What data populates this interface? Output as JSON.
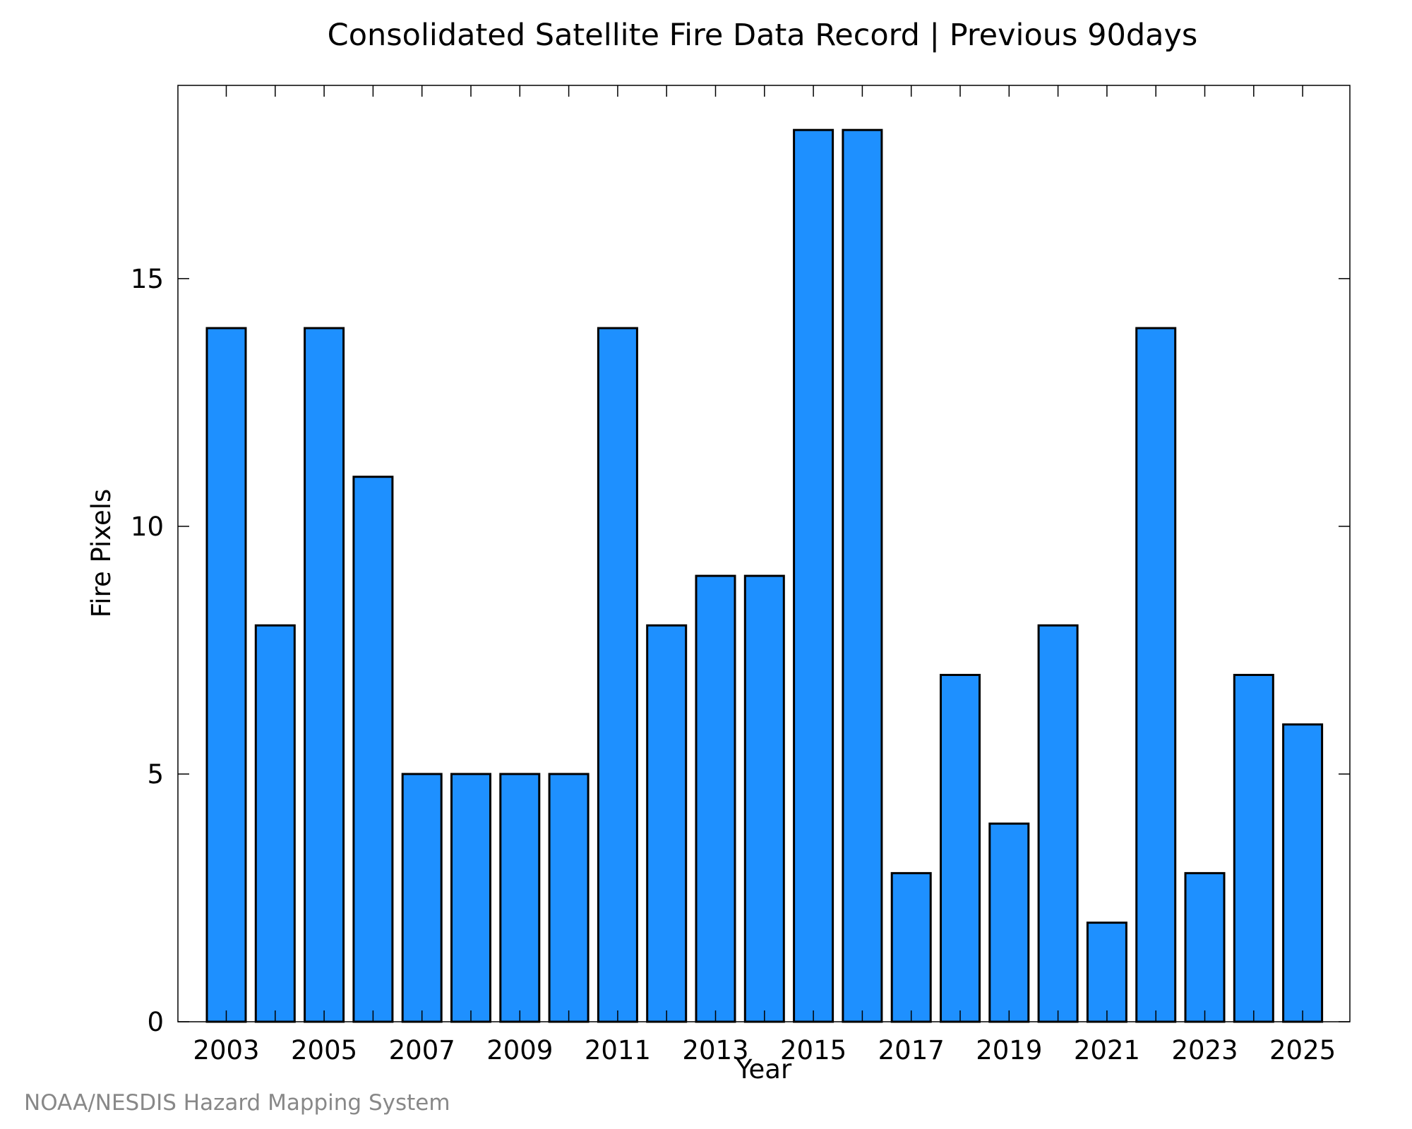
{
  "chart_data": {
    "type": "bar",
    "title": "Consolidated Satellite Fire Data Record | Previous 90days",
    "xlabel": "Year",
    "ylabel": "Fire Pixels",
    "categories": [
      "2003",
      "2004",
      "2005",
      "2006",
      "2007",
      "2008",
      "2009",
      "2010",
      "2011",
      "2012",
      "2013",
      "2014",
      "2015",
      "2016",
      "2017",
      "2018",
      "2019",
      "2020",
      "2021",
      "2022",
      "2023",
      "2024",
      "2025"
    ],
    "values": [
      14,
      8,
      14,
      11,
      5,
      5,
      5,
      5,
      14,
      8,
      9,
      9,
      18,
      18,
      3,
      7,
      4,
      8,
      2,
      14,
      3,
      7,
      6
    ],
    "x_tick_labels": [
      "2003",
      "2005",
      "2007",
      "2009",
      "2011",
      "2013",
      "2015",
      "2017",
      "2019",
      "2021",
      "2023",
      "2025"
    ],
    "y_ticks": [
      0,
      5,
      10,
      15
    ],
    "y_tick_labels": [
      "0",
      "5",
      "10",
      "15"
    ],
    "ylim": [
      0,
      18.9
    ],
    "grid": false,
    "legend": "none",
    "bar_color": "#1e90ff",
    "edge_color": "#000000"
  },
  "footer": {
    "credit": "NOAA/NESDIS Hazard Mapping System"
  }
}
